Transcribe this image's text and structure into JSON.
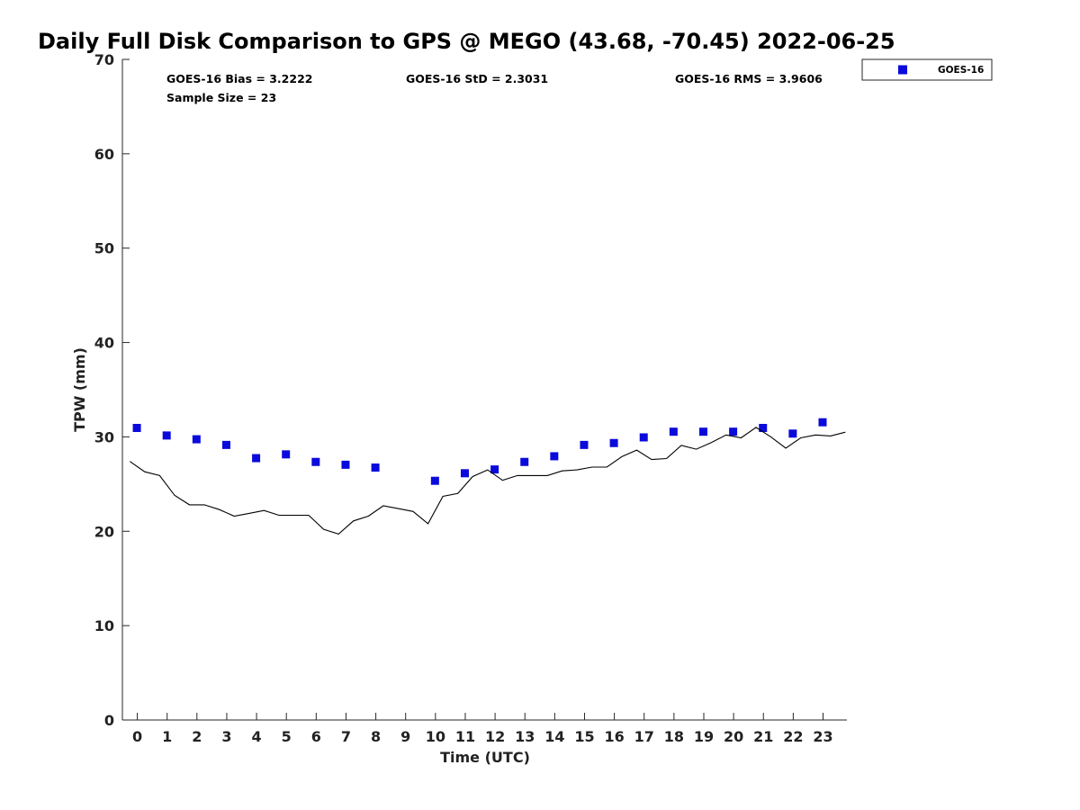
{
  "colors": {
    "goes": "#0a0adc",
    "gps_line": "#000000",
    "axis": "#262626"
  },
  "chart_data": {
    "type": "line",
    "title": "Daily Full Disk Comparison to GPS @ MEGO (43.68, -70.45) 2022-06-25",
    "xlabel": "Time (UTC)",
    "ylabel": "TPW (mm)",
    "xlim": [
      -0.5,
      23.8
    ],
    "ylim": [
      0,
      70
    ],
    "x_ticks": [
      0,
      1,
      2,
      3,
      4,
      5,
      6,
      7,
      8,
      9,
      10,
      11,
      12,
      13,
      14,
      15,
      16,
      17,
      18,
      19,
      20,
      21,
      22,
      23
    ],
    "y_ticks": [
      0,
      10,
      20,
      30,
      40,
      50,
      60,
      70
    ],
    "stats": {
      "bias": "GOES-16 Bias = 3.2222",
      "std": "GOES-16 StD = 2.3031",
      "rms": "GOES-16 RMS = 3.9606",
      "sample": "Sample Size = 23"
    },
    "legend": {
      "label": "GOES-16",
      "position": "top-right outside"
    },
    "series": [
      {
        "name": "GOES-16",
        "type": "scatter",
        "marker": "square",
        "points": [
          [
            0,
            30.9
          ],
          [
            1,
            30.1
          ],
          [
            2,
            29.7
          ],
          [
            3,
            29.1
          ],
          [
            4,
            27.7
          ],
          [
            5,
            28.1
          ],
          [
            6,
            27.3
          ],
          [
            7,
            27.0
          ],
          [
            8,
            26.7
          ],
          [
            10,
            25.3
          ],
          [
            11,
            26.1
          ],
          [
            12,
            26.5
          ],
          [
            13,
            27.3
          ],
          [
            14,
            27.9
          ],
          [
            15,
            29.1
          ],
          [
            16,
            29.3
          ],
          [
            17,
            29.9
          ],
          [
            18,
            30.5
          ],
          [
            19,
            30.5
          ],
          [
            20,
            30.5
          ],
          [
            21,
            30.9
          ],
          [
            22,
            30.3
          ],
          [
            23,
            31.5
          ]
        ]
      },
      {
        "type": "line",
        "points": [
          [
            -0.25,
            27.4
          ],
          [
            0.25,
            26.3
          ],
          [
            0.75,
            25.9
          ],
          [
            1.25,
            23.8
          ],
          [
            1.75,
            22.8
          ],
          [
            2.25,
            22.8
          ],
          [
            2.75,
            22.3
          ],
          [
            3.25,
            21.6
          ],
          [
            3.75,
            21.9
          ],
          [
            4.25,
            22.2
          ],
          [
            4.75,
            21.7
          ],
          [
            5.25,
            21.7
          ],
          [
            5.75,
            21.7
          ],
          [
            6.25,
            20.2
          ],
          [
            6.75,
            19.7
          ],
          [
            7.25,
            21.1
          ],
          [
            7.75,
            21.6
          ],
          [
            8.25,
            22.7
          ],
          [
            8.75,
            22.4
          ],
          [
            9.25,
            22.1
          ],
          [
            9.75,
            20.8
          ],
          [
            10.25,
            23.7
          ],
          [
            10.75,
            24.0
          ],
          [
            11.25,
            25.8
          ],
          [
            11.75,
            26.5
          ],
          [
            12.25,
            25.4
          ],
          [
            12.75,
            25.9
          ],
          [
            13.25,
            25.9
          ],
          [
            13.75,
            25.9
          ],
          [
            14.25,
            26.4
          ],
          [
            14.75,
            26.5
          ],
          [
            15.25,
            26.8
          ],
          [
            15.75,
            26.8
          ],
          [
            16.25,
            27.9
          ],
          [
            16.75,
            28.6
          ],
          [
            17.25,
            27.6
          ],
          [
            17.75,
            27.7
          ],
          [
            18.25,
            29.1
          ],
          [
            18.75,
            28.7
          ],
          [
            19.25,
            29.4
          ],
          [
            19.75,
            30.2
          ],
          [
            20.25,
            29.9
          ],
          [
            20.75,
            31.0
          ],
          [
            21.25,
            30.0
          ],
          [
            21.75,
            28.8
          ],
          [
            22.25,
            29.9
          ],
          [
            22.75,
            30.2
          ],
          [
            23.25,
            30.1
          ],
          [
            23.75,
            30.5
          ]
        ]
      }
    ]
  }
}
